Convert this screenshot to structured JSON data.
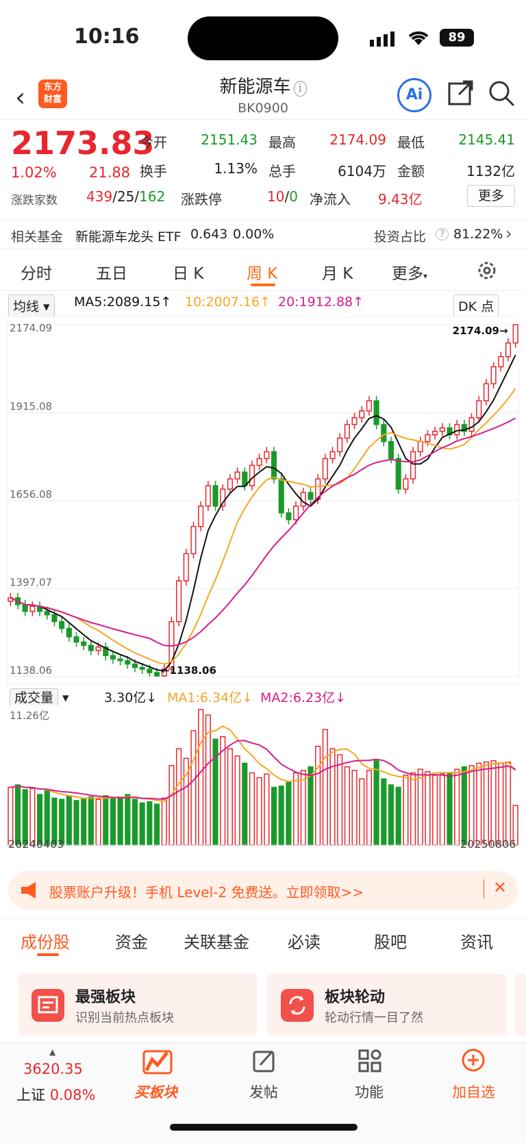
{
  "status": {
    "time": "10:16",
    "battery": "89"
  },
  "header": {
    "title": "新能源车",
    "code": "BK0900",
    "logo": "东方\n财富",
    "ai": "Ai"
  },
  "quote": {
    "price": "2173.83",
    "pct": "1.02%",
    "change": "21.88",
    "open_label": "今开",
    "open": "2151.43",
    "high_label": "最高",
    "high": "2174.09",
    "low_label": "最低",
    "low": "2145.41",
    "turnover_label": "换手",
    "turnover": "1.13%",
    "vol_label": "总手",
    "vol": "6104万",
    "amount_label": "金额",
    "amount": "1132亿",
    "breadth_label": "涨跌家数",
    "up": "439",
    "flat": "25",
    "down": "162",
    "limit_label": "涨跌停",
    "limit_up": "10",
    "limit_down": "0",
    "inflow_label": "净流入",
    "inflow": "9.43亿",
    "more": "更多"
  },
  "fund": {
    "label": "相关基金",
    "name": "新能源车龙头 ETF",
    "nav": "0.643",
    "chg": "0.00%",
    "weight_label": "投资占比",
    "weight": "81.22%"
  },
  "tabs": [
    "分时",
    "五日",
    "日 K",
    "周 K",
    "月 K",
    "更多"
  ],
  "chart_head": {
    "selector": "均线",
    "ma5": "MA5:2089.15",
    "ma10": "10:2007.16",
    "ma20": "20:1912.88",
    "dk": "DK 点"
  },
  "colors": {
    "up": "#e8262c",
    "down": "#1a9a2a",
    "ma5": "#111111",
    "ma10": "#f5a623",
    "ma20": "#d81b8a",
    "accent": "#ff6a1a"
  },
  "chart_data": {
    "type": "candlestick",
    "period": "weekly",
    "y_ticks": [
      "2174.09",
      "1915.08",
      "1656.08",
      "1397.07",
      "1138.06"
    ],
    "ylim": [
      1138.06,
      2174.09
    ],
    "high_label": "2174.09",
    "low_label": "1138.06",
    "x_start": "20240403",
    "x_end": "20250806",
    "volume_selector": "成交量",
    "volume_now": "3.30亿",
    "vol_ma1": "MA1:6.34亿",
    "vol_ma2": "MA2:6.23亿",
    "volume_max_label": "11.26亿",
    "closes": [
      1370,
      1350,
      1330,
      1345,
      1330,
      1320,
      1300,
      1280,
      1255,
      1240,
      1230,
      1215,
      1225,
      1200,
      1190,
      1185,
      1175,
      1165,
      1160,
      1150,
      1140,
      1160,
      1300,
      1420,
      1500,
      1580,
      1640,
      1700,
      1640,
      1690,
      1720,
      1740,
      1700,
      1760,
      1780,
      1800,
      1720,
      1620,
      1600,
      1640,
      1680,
      1660,
      1720,
      1780,
      1800,
      1840,
      1880,
      1900,
      1920,
      1950,
      1880,
      1830,
      1780,
      1690,
      1720,
      1800,
      1830,
      1850,
      1860,
      1870,
      1850,
      1880,
      1860,
      1900,
      1950,
      2000,
      2050,
      2080,
      2120,
      2173.83
    ],
    "volumes": [
      4.8,
      5.0,
      4.6,
      4.7,
      4.2,
      4.5,
      3.9,
      3.8,
      4.1,
      3.7,
      3.9,
      4.0,
      3.8,
      4.1,
      3.9,
      4.0,
      4.2,
      3.8,
      3.5,
      3.6,
      3.4,
      3.9,
      6.6,
      8.0,
      7.2,
      9.5,
      11.26,
      10.8,
      8.8,
      9.0,
      8.0,
      7.4,
      6.8,
      6.0,
      5.6,
      5.9,
      4.8,
      4.9,
      5.2,
      6.0,
      6.2,
      6.5,
      8.2,
      9.6,
      8.0,
      7.5,
      6.5,
      6.2,
      5.5,
      6.2,
      7.0,
      5.5,
      5.0,
      4.8,
      5.8,
      6.0,
      6.3,
      6.1,
      5.8,
      5.9,
      6.0,
      6.3,
      6.5,
      6.6,
      6.8,
      6.9,
      7.0,
      6.8,
      6.9,
      3.3
    ]
  },
  "promo": {
    "text": "股票账户升级！手机 Level-2 免费送。立即领取>>"
  },
  "bottom_tabs": [
    "成份股",
    "资金",
    "关联基金",
    "必读",
    "股吧",
    "资讯"
  ],
  "cards": [
    {
      "title": "最强板块",
      "sub": "识别当前热点板块"
    },
    {
      "title": "板块轮动",
      "sub": "轮动行情一目了然"
    }
  ],
  "nav": {
    "index_value": "3620.35",
    "index_name": "上证",
    "index_pct": "0.08%",
    "items": [
      "买板块",
      "发帖",
      "功能",
      "加自选"
    ]
  }
}
